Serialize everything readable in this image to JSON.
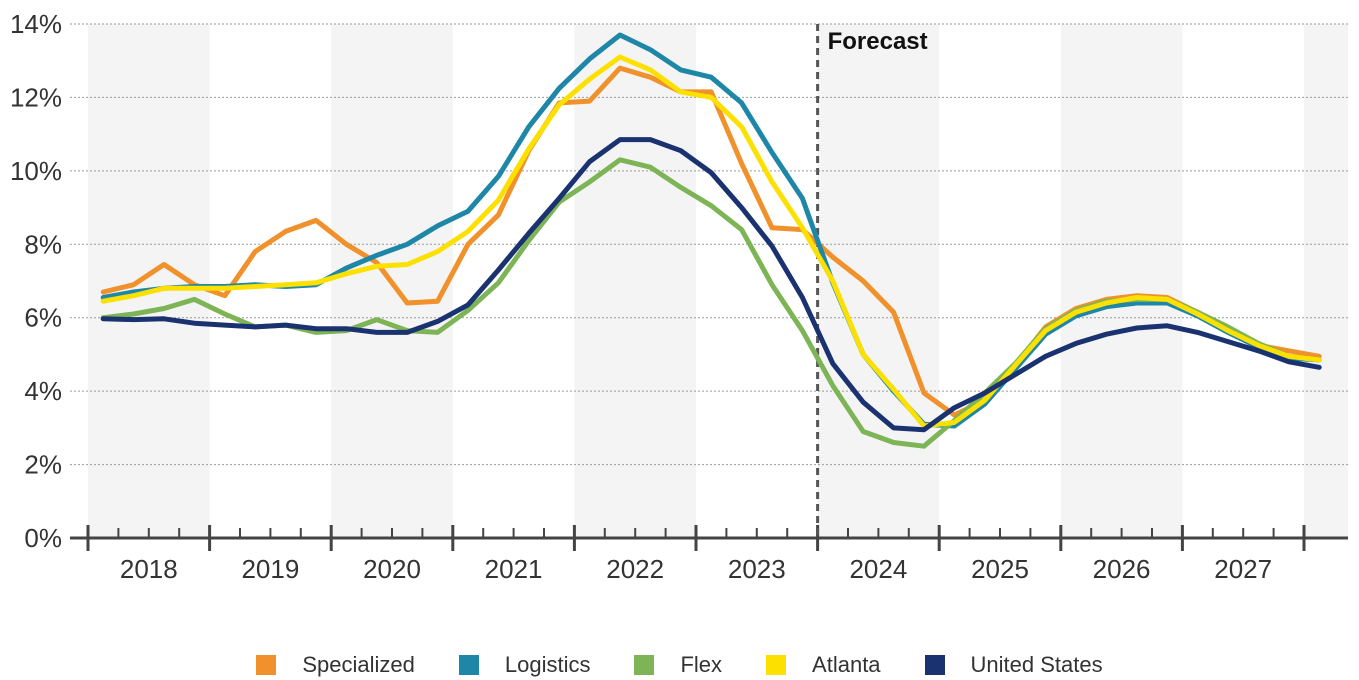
{
  "chart_data": {
    "type": "line",
    "annotation": "Forecast",
    "forecast_start": 2023.5,
    "xlim": [
      2017.5,
      2027.85
    ],
    "ylim": [
      0,
      14
    ],
    "yticks": [
      {
        "value": 0,
        "label": "0%"
      },
      {
        "value": 2,
        "label": "2%"
      },
      {
        "value": 4,
        "label": "4%"
      },
      {
        "value": 6,
        "label": "6%"
      },
      {
        "value": 8,
        "label": "8%"
      },
      {
        "value": 10,
        "label": "10%"
      },
      {
        "value": 12,
        "label": "12%"
      },
      {
        "value": 14,
        "label": "14%"
      }
    ],
    "year_labels": [
      "2018",
      "2019",
      "2020",
      "2021",
      "2022",
      "2023",
      "2024",
      "2025",
      "2026",
      "2027"
    ],
    "grid": "horizontal dotted",
    "legend_position": "bottom",
    "x": [
      2017.625,
      2017.875,
      2018.125,
      2018.375,
      2018.625,
      2018.875,
      2019.125,
      2019.375,
      2019.625,
      2019.875,
      2020.125,
      2020.375,
      2020.625,
      2020.875,
      2021.125,
      2021.375,
      2021.625,
      2021.875,
      2022.125,
      2022.375,
      2022.625,
      2022.875,
      2023.125,
      2023.375,
      2023.625,
      2023.875,
      2024.125,
      2024.375,
      2024.625,
      2024.875,
      2025.125,
      2025.375,
      2025.625,
      2025.875,
      2026.125,
      2026.375,
      2026.625,
      2026.875,
      2027.125,
      2027.375,
      2027.625
    ],
    "series": [
      {
        "name": "Specialized",
        "color": "#F0912C",
        "values": [
          6.7,
          6.9,
          7.45,
          6.9,
          6.6,
          7.8,
          8.35,
          8.65,
          8.0,
          7.5,
          6.4,
          6.45,
          8.0,
          8.8,
          10.55,
          11.85,
          11.9,
          12.8,
          12.55,
          12.15,
          12.15,
          10.2,
          8.45,
          8.4,
          7.65,
          7.0,
          6.15,
          3.95,
          3.35,
          3.75,
          4.7,
          5.75,
          6.25,
          6.5,
          6.6,
          6.55,
          6.15,
          5.7,
          5.25,
          5.1,
          4.95
        ]
      },
      {
        "name": "Logistics",
        "color": "#1E87A8",
        "values": [
          6.55,
          6.7,
          6.8,
          6.85,
          6.85,
          6.9,
          6.85,
          6.9,
          7.35,
          7.7,
          8.0,
          8.5,
          8.9,
          9.85,
          11.2,
          12.25,
          13.05,
          13.7,
          13.3,
          12.75,
          12.55,
          11.85,
          10.5,
          9.25,
          6.95,
          5.0,
          4.0,
          3.1,
          3.05,
          3.65,
          4.6,
          5.55,
          6.05,
          6.3,
          6.4,
          6.4,
          6.05,
          5.6,
          5.2,
          4.9,
          4.85
        ]
      },
      {
        "name": "Flex",
        "color": "#7DB556",
        "values": [
          6.0,
          6.1,
          6.25,
          6.5,
          6.1,
          5.75,
          5.8,
          5.6,
          5.65,
          5.95,
          5.65,
          5.6,
          6.2,
          6.95,
          8.1,
          9.15,
          9.7,
          10.3,
          10.1,
          9.55,
          9.05,
          8.4,
          6.9,
          5.65,
          4.15,
          2.9,
          2.6,
          2.5,
          3.2,
          3.95,
          4.75,
          5.7,
          6.2,
          6.45,
          6.5,
          6.5,
          6.15,
          5.75,
          5.3,
          4.95,
          4.85
        ]
      },
      {
        "name": "Atlanta",
        "color": "#FCE000",
        "values": [
          6.45,
          6.6,
          6.8,
          6.8,
          6.8,
          6.85,
          6.9,
          6.95,
          7.2,
          7.4,
          7.45,
          7.8,
          8.35,
          9.2,
          10.6,
          11.8,
          12.5,
          13.1,
          12.75,
          12.15,
          12.0,
          11.2,
          9.7,
          8.45,
          7.0,
          5.0,
          4.05,
          3.05,
          3.15,
          3.75,
          4.7,
          5.65,
          6.15,
          6.4,
          6.55,
          6.5,
          6.1,
          5.65,
          5.25,
          4.95,
          4.85
        ]
      },
      {
        "name": "United States",
        "color": "#1A3370",
        "values": [
          5.97,
          5.95,
          5.97,
          5.85,
          5.8,
          5.75,
          5.8,
          5.7,
          5.7,
          5.6,
          5.6,
          5.9,
          6.35,
          7.3,
          8.3,
          9.25,
          10.25,
          10.85,
          10.85,
          10.55,
          9.95,
          9.0,
          7.95,
          6.55,
          4.75,
          3.7,
          3.0,
          2.95,
          3.55,
          3.95,
          4.45,
          4.95,
          5.3,
          5.55,
          5.72,
          5.78,
          5.6,
          5.35,
          5.1,
          4.8,
          4.65
        ]
      }
    ]
  }
}
